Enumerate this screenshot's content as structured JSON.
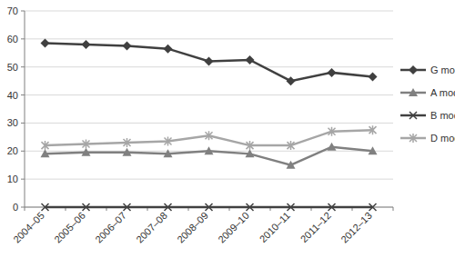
{
  "chart_data": {
    "type": "line",
    "categories": [
      "2004–05",
      "2005–06",
      "2006–07",
      "2007–08",
      "2008–09",
      "2009–10",
      "2010–11",
      "2011–12",
      "2012–13"
    ],
    "series": [
      {
        "name": "G model",
        "color": "#404040",
        "marker": "diamond",
        "line_style": "solid",
        "values": [
          58.5,
          58,
          57.5,
          56.5,
          52,
          52.5,
          45,
          48,
          46.5
        ]
      },
      {
        "name": "A model",
        "color": "#808080",
        "marker": "triangle",
        "line_style": "solid",
        "values": [
          19,
          19.5,
          19.5,
          19,
          20,
          19,
          15,
          21.5,
          20
        ]
      },
      {
        "name": "B model",
        "color": "#404040",
        "marker": "x",
        "line_style": "solid",
        "values": [
          0,
          0,
          0,
          0,
          0,
          0,
          0,
          0,
          0
        ]
      },
      {
        "name": "D model",
        "color": "#a6a6a6",
        "marker": "star",
        "line_style": "solid",
        "values": [
          22,
          22.5,
          23,
          23.5,
          25.5,
          22,
          22,
          27,
          27.5
        ]
      }
    ],
    "ylim": [
      0,
      70
    ],
    "yticks": [
      0,
      10,
      20,
      30,
      40,
      50,
      60,
      70
    ],
    "grid": true,
    "legend": "right"
  }
}
